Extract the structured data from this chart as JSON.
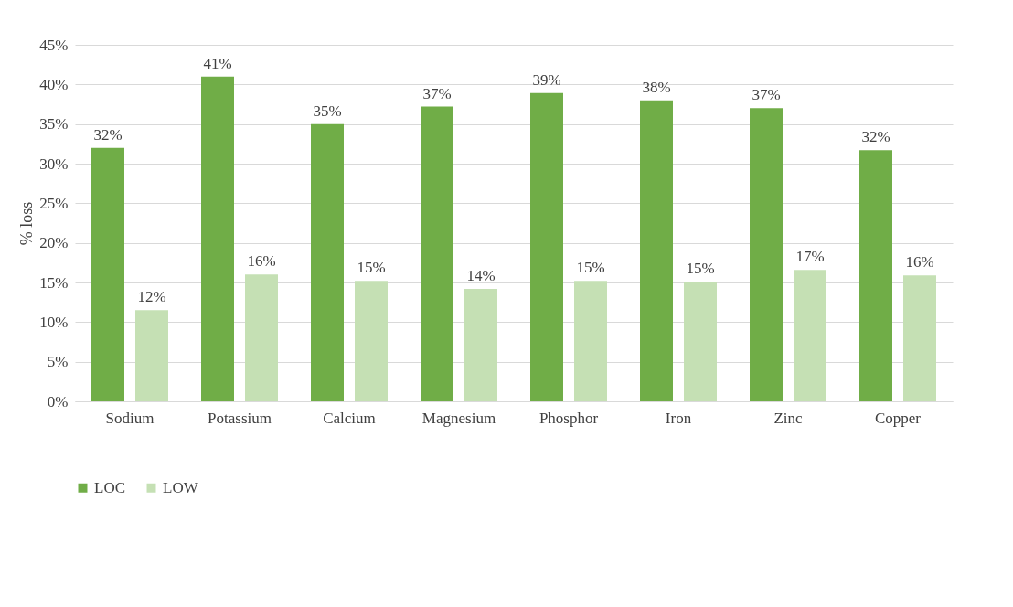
{
  "chart_data": {
    "type": "bar",
    "ylabel": "% loss",
    "categories": [
      "Sodium",
      "Potassium",
      "Calcium",
      "Magnesium",
      "Phosphor",
      "Iron",
      "Zinc",
      "Copper"
    ],
    "series": [
      {
        "name": "LOC",
        "color": "#70ad47",
        "values": [
          32,
          41,
          35,
          37.2,
          38.9,
          38,
          37,
          31.7
        ],
        "value_labels": [
          "32%",
          "41%",
          "35%",
          "37%",
          "39%",
          "38%",
          "37%",
          "32%"
        ]
      },
      {
        "name": "LOW",
        "color": "#c5e0b4",
        "values": [
          11.5,
          16,
          15.2,
          14.2,
          15.2,
          15.1,
          16.6,
          15.9
        ],
        "value_labels": [
          "12%",
          "16%",
          "15%",
          "14%",
          "15%",
          "15%",
          "17%",
          "16%"
        ]
      }
    ],
    "ylim": [
      0,
      45
    ],
    "yticks": [
      {
        "value": 0,
        "label": "0%"
      },
      {
        "value": 5,
        "label": "5%"
      },
      {
        "value": 10,
        "label": "10%"
      },
      {
        "value": 15,
        "label": "15%"
      },
      {
        "value": 20,
        "label": "20%"
      },
      {
        "value": 25,
        "label": "25%"
      },
      {
        "value": 30,
        "label": "30%"
      },
      {
        "value": 35,
        "label": "35%"
      },
      {
        "value": 40,
        "label": "40%"
      },
      {
        "value": 45,
        "label": "45%"
      }
    ],
    "grid": "y",
    "legend": "bottom"
  }
}
